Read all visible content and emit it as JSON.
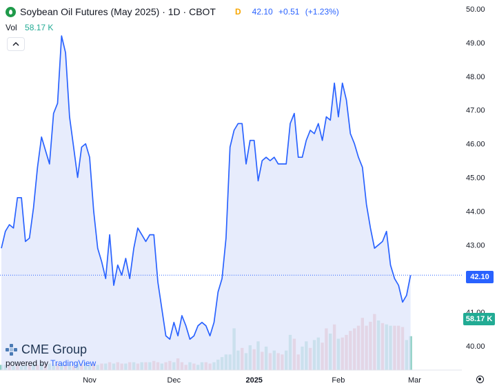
{
  "legend": {
    "title": "Soybean Oil Futures (May 2025) · 1D · CBOT",
    "flag": "D",
    "last": "42.10",
    "change": "+0.51",
    "change_pct": "(+1.23%)"
  },
  "volume_legend": {
    "label": "Vol",
    "value": "58.17 K"
  },
  "collapse_icon": "chevron-up-icon",
  "badges": {
    "last_price": "42.10",
    "last_volume": "58.17 K"
  },
  "watermark": {
    "brand": "CME Group",
    "powered_prefix": "powered by",
    "powered_brand": "TradingView"
  },
  "colors": {
    "line": "#2962ff",
    "volume_up": "#8ed0c4",
    "volume_down": "#f0a9a9",
    "volume_last": "#22ab94"
  },
  "chart_data": {
    "type": "area",
    "title": "Soybean Oil Futures (May 2025) · 1D · CBOT",
    "y_ticks": [
      "50.00",
      "49.00",
      "48.00",
      "47.00",
      "46.00",
      "45.00",
      "44.00",
      "43.00",
      "42.00",
      "41.00",
      "40.00"
    ],
    "x_ticks": [
      {
        "label": "Nov",
        "index": 22
      },
      {
        "label": "Dec",
        "index": 43
      },
      {
        "label": "2025",
        "index": 63
      },
      {
        "label": "Feb",
        "index": 84
      },
      {
        "label": "Mar",
        "index": 103
      }
    ],
    "ylim": [
      39.35,
      50.25
    ],
    "series": [
      {
        "values": [
          42.9,
          43.4,
          43.6,
          43.5,
          44.4,
          44.4,
          43.1,
          43.2,
          44.1,
          45.3,
          46.2,
          45.8,
          45.4,
          46.9,
          47.2,
          49.2,
          48.7,
          46.8,
          45.9,
          45.0,
          45.9,
          46.0,
          45.6,
          44.0,
          42.9,
          42.5,
          42.0,
          43.3,
          41.8,
          42.4,
          42.1,
          42.6,
          42.0,
          42.9,
          43.5,
          43.3,
          43.1,
          43.3,
          43.3,
          41.9,
          41.1,
          40.3,
          40.2,
          40.7,
          40.3,
          40.9,
          40.6,
          40.2,
          40.3,
          40.6,
          40.7,
          40.6,
          40.3,
          40.7,
          41.6,
          42.0,
          43.2,
          45.9,
          46.4,
          46.6,
          46.6,
          45.4,
          46.1,
          46.1,
          44.9,
          45.5,
          45.6,
          45.5,
          45.6,
          45.4,
          45.4,
          45.4,
          46.6,
          46.9,
          45.6,
          45.6,
          46.1,
          46.4,
          46.3,
          46.6,
          46.1,
          46.8,
          46.7,
          47.8,
          46.8,
          47.8,
          47.3,
          46.3,
          46.0,
          45.6,
          45.3,
          44.2,
          43.5,
          42.9,
          43.0,
          43.1,
          43.4,
          42.4,
          42.0,
          41.8,
          41.3,
          41.5,
          42.1
        ]
      }
    ],
    "volume_lim": [
      0,
      66
    ],
    "volume": [
      {
        "v": 4,
        "up": true
      },
      {
        "v": 4,
        "up": true
      },
      {
        "v": 4,
        "up": false
      },
      {
        "v": 3,
        "up": true
      },
      {
        "v": 4,
        "up": false
      },
      {
        "v": 3,
        "up": true
      },
      {
        "v": 4,
        "up": true
      },
      {
        "v": 4,
        "up": false
      },
      {
        "v": 5,
        "up": true
      },
      {
        "v": 4,
        "up": false
      },
      {
        "v": 5,
        "up": true
      },
      {
        "v": 4,
        "up": false
      },
      {
        "v": 5,
        "up": true
      },
      {
        "v": 4,
        "up": true
      },
      {
        "v": 5,
        "up": false
      },
      {
        "v": 5,
        "up": true
      },
      {
        "v": 4,
        "up": false
      },
      {
        "v": 4,
        "up": true
      },
      {
        "v": 3,
        "up": false
      },
      {
        "v": 5,
        "up": true
      },
      {
        "v": 4,
        "up": false
      },
      {
        "v": 5,
        "up": true
      },
      {
        "v": 4,
        "up": true
      },
      {
        "v": 5,
        "up": false
      },
      {
        "v": 4,
        "up": true
      },
      {
        "v": 5,
        "up": false
      },
      {
        "v": 5,
        "up": true
      },
      {
        "v": 6,
        "up": false
      },
      {
        "v": 5,
        "up": true
      },
      {
        "v": 6,
        "up": false
      },
      {
        "v": 5,
        "up": false
      },
      {
        "v": 5,
        "up": true
      },
      {
        "v": 6,
        "up": false
      },
      {
        "v": 6,
        "up": true
      },
      {
        "v": 5,
        "up": false
      },
      {
        "v": 6,
        "up": true
      },
      {
        "v": 6,
        "up": false
      },
      {
        "v": 6,
        "up": true
      },
      {
        "v": 7,
        "up": false
      },
      {
        "v": 6,
        "up": false
      },
      {
        "v": 5,
        "up": true
      },
      {
        "v": 6,
        "up": false
      },
      {
        "v": 7,
        "up": false
      },
      {
        "v": 6,
        "up": true
      },
      {
        "v": 9,
        "up": false
      },
      {
        "v": 6,
        "up": false
      },
      {
        "v": 4,
        "up": false
      },
      {
        "v": 6,
        "up": true
      },
      {
        "v": 5,
        "up": false
      },
      {
        "v": 4,
        "up": true
      },
      {
        "v": 6,
        "up": true
      },
      {
        "v": 6,
        "up": false
      },
      {
        "v": 5,
        "up": false
      },
      {
        "v": 6,
        "up": true
      },
      {
        "v": 8,
        "up": true
      },
      {
        "v": 10,
        "up": true
      },
      {
        "v": 12,
        "up": true
      },
      {
        "v": 12,
        "up": true
      },
      {
        "v": 32,
        "up": true
      },
      {
        "v": 15,
        "up": true
      },
      {
        "v": 17,
        "up": false
      },
      {
        "v": 13,
        "up": true
      },
      {
        "v": 19,
        "up": true
      },
      {
        "v": 16,
        "up": false
      },
      {
        "v": 22,
        "up": true
      },
      {
        "v": 14,
        "up": false
      },
      {
        "v": 18,
        "up": true
      },
      {
        "v": 13,
        "up": false
      },
      {
        "v": 15,
        "up": true
      },
      {
        "v": 13,
        "up": false
      },
      {
        "v": 12,
        "up": false
      },
      {
        "v": 15,
        "up": true
      },
      {
        "v": 27,
        "up": true
      },
      {
        "v": 24,
        "up": false
      },
      {
        "v": 12,
        "up": false
      },
      {
        "v": 18,
        "up": true
      },
      {
        "v": 22,
        "up": true
      },
      {
        "v": 17,
        "up": false
      },
      {
        "v": 23,
        "up": true
      },
      {
        "v": 25,
        "up": true
      },
      {
        "v": 21,
        "up": false
      },
      {
        "v": 32,
        "up": false
      },
      {
        "v": 28,
        "up": true
      },
      {
        "v": 35,
        "up": false
      },
      {
        "v": 24,
        "up": true
      },
      {
        "v": 25,
        "up": false
      },
      {
        "v": 27,
        "up": false
      },
      {
        "v": 30,
        "up": false
      },
      {
        "v": 32,
        "up": false
      },
      {
        "v": 34,
        "up": false
      },
      {
        "v": 40,
        "up": false
      },
      {
        "v": 34,
        "up": false
      },
      {
        "v": 37,
        "up": false
      },
      {
        "v": 43,
        "up": false
      },
      {
        "v": 38,
        "up": true
      },
      {
        "v": 36,
        "up": false
      },
      {
        "v": 35,
        "up": true
      },
      {
        "v": 34,
        "up": true
      },
      {
        "v": 34,
        "up": false
      },
      {
        "v": 34,
        "up": false
      },
      {
        "v": 33,
        "up": false
      },
      {
        "v": 23,
        "up": true
      },
      {
        "v": 26,
        "up": true
      }
    ],
    "last_price": 42.1,
    "grid": false,
    "legend": "top-left"
  }
}
